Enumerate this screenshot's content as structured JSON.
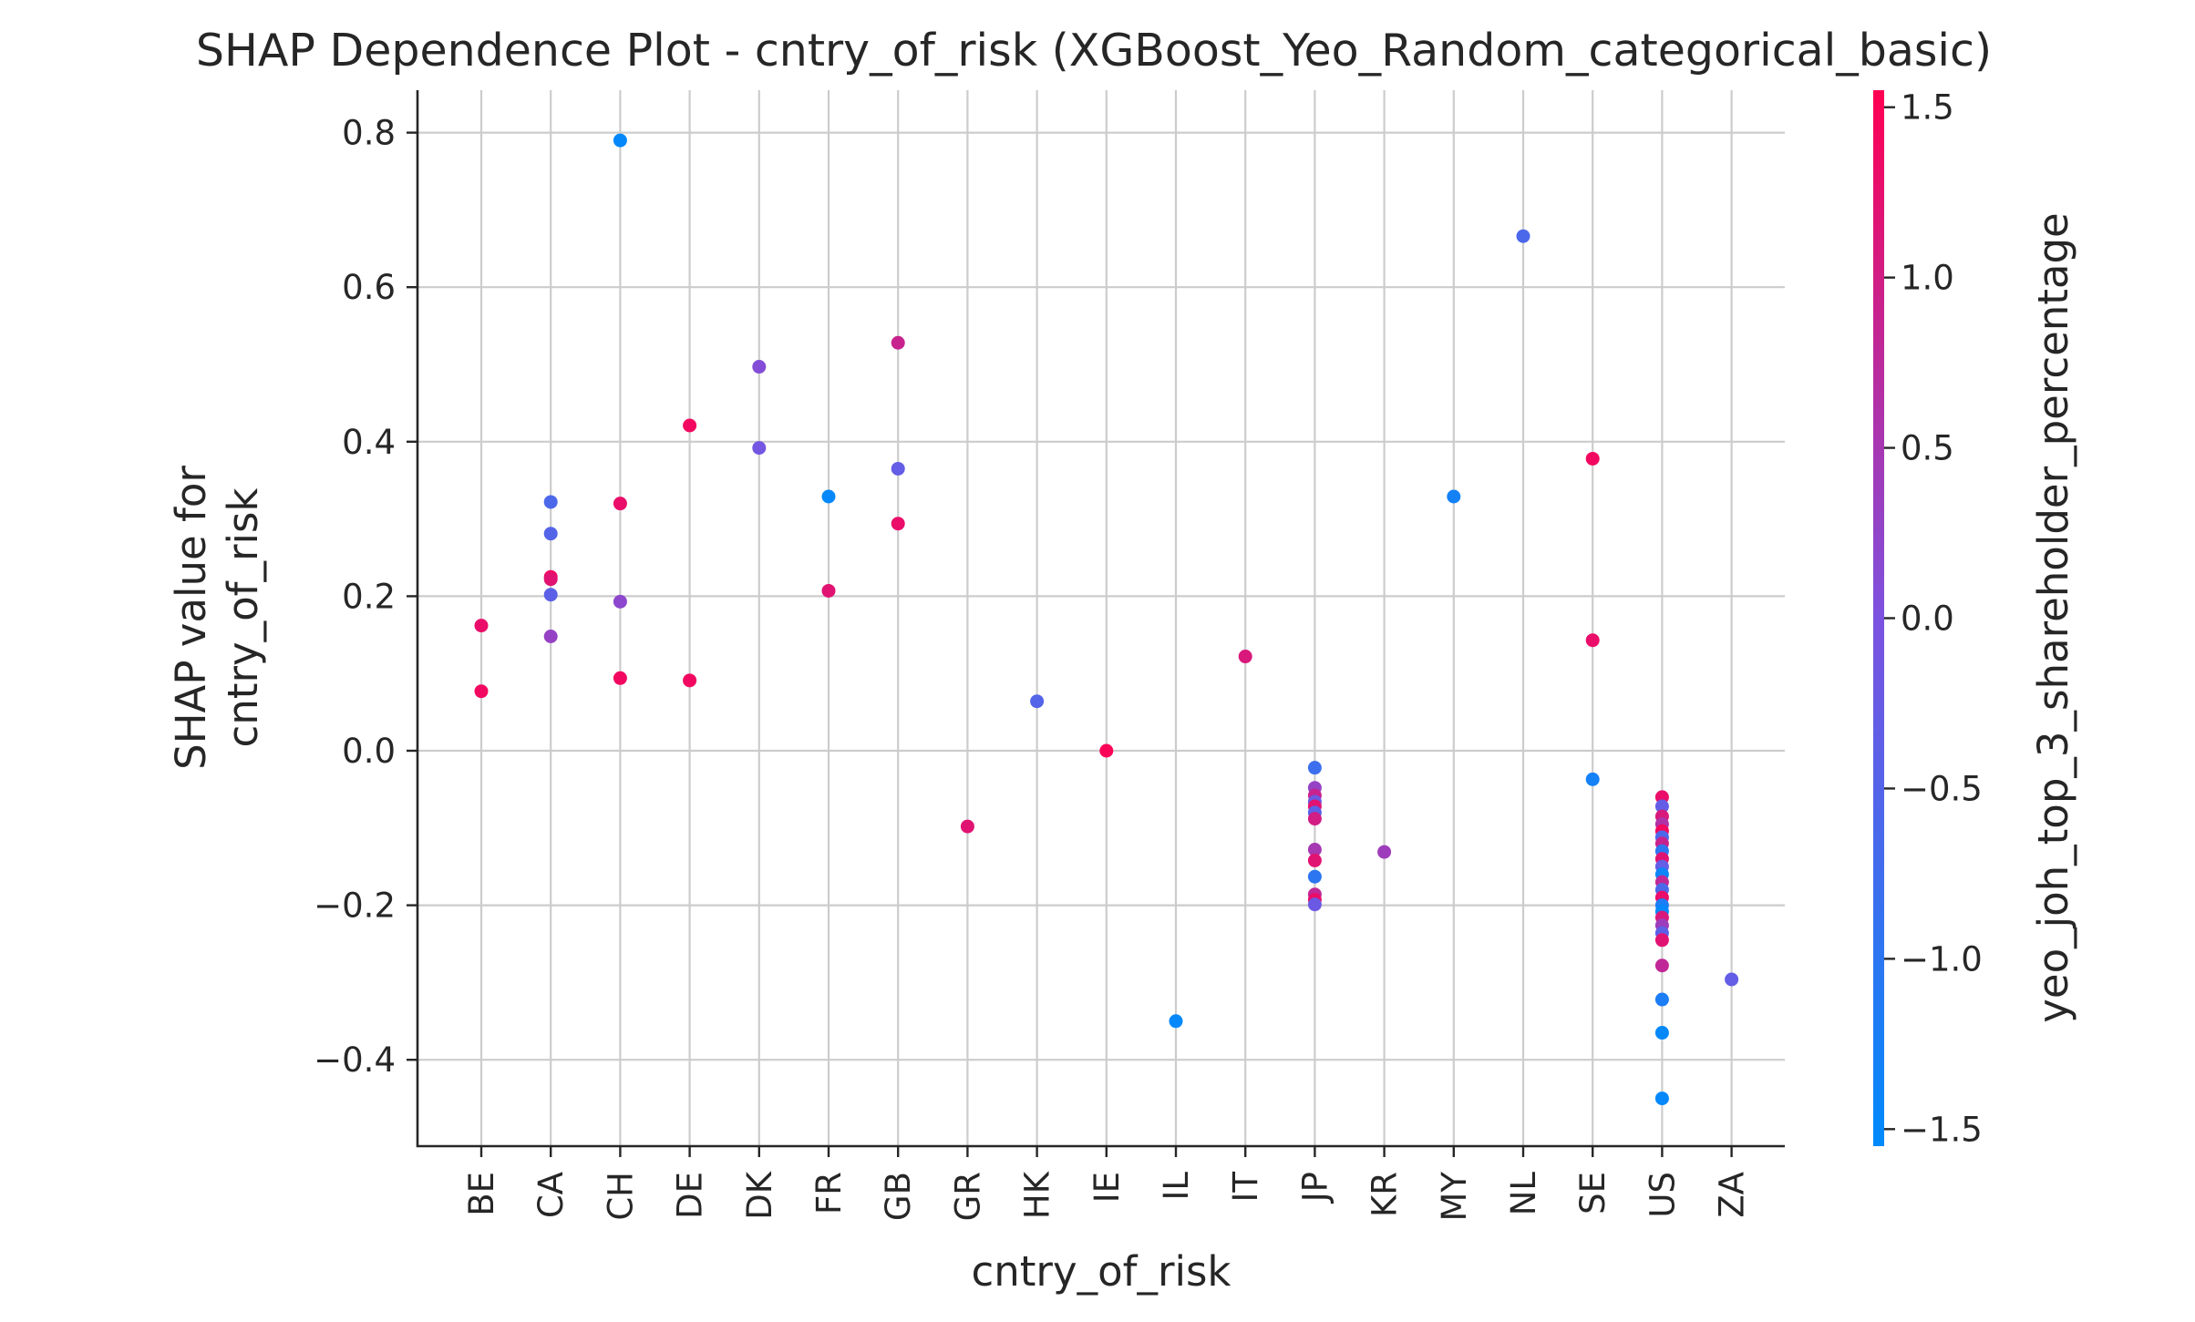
{
  "chart_data": {
    "type": "scatter",
    "title": "SHAP Dependence Plot - cntry_of_risk (XGBoost_Yeo_Random_categorical_basic)",
    "xlabel": "cntry_of_risk",
    "ylabel_lines": [
      "SHAP value for",
      "cntry_of_risk"
    ],
    "ylim": [
      -0.51,
      0.85
    ],
    "yticks": [
      -0.4,
      -0.2,
      0.0,
      0.2,
      0.4,
      0.6,
      0.8
    ],
    "ytick_labels": [
      "−0.4",
      "−0.2",
      "0.0",
      "0.2",
      "0.4",
      "0.6",
      "0.8"
    ],
    "categories": [
      "BE",
      "CA",
      "CH",
      "DE",
      "DK",
      "FR",
      "GB",
      "GR",
      "HK",
      "IE",
      "IL",
      "IT",
      "JP",
      "KR",
      "MY",
      "NL",
      "SE",
      "US",
      "ZA"
    ],
    "grid": true,
    "colorbar": {
      "label": "yeo_joh_top_3_shareholder_percentage",
      "range": [
        -1.55,
        1.55
      ],
      "ticks": [
        -1.5,
        -1.0,
        -0.5,
        0.0,
        0.5,
        1.0,
        1.5
      ],
      "tick_labels": [
        "−1.5",
        "−1.0",
        "−0.5",
        "0.0",
        "0.5",
        "1.0",
        "1.5"
      ],
      "colormap": [
        "#008afb",
        "#7c52e0",
        "#ff0052"
      ]
    },
    "points": [
      {
        "x": "BE",
        "y": 0.162,
        "c": 1.3
      },
      {
        "x": "BE",
        "y": 0.077,
        "c": 1.4
      },
      {
        "x": "CA",
        "y": 0.322,
        "c": -0.6
      },
      {
        "x": "CA",
        "y": 0.281,
        "c": -0.5
      },
      {
        "x": "CA",
        "y": 0.225,
        "c": 1.4
      },
      {
        "x": "CA",
        "y": 0.222,
        "c": 1.2
      },
      {
        "x": "CA",
        "y": 0.202,
        "c": -0.4
      },
      {
        "x": "CA",
        "y": 0.148,
        "c": 0.3
      },
      {
        "x": "CH",
        "y": 0.79,
        "c": -1.5
      },
      {
        "x": "CH",
        "y": 0.32,
        "c": 1.3
      },
      {
        "x": "CH",
        "y": 0.193,
        "c": 0.2
      },
      {
        "x": "CH",
        "y": 0.094,
        "c": 1.4
      },
      {
        "x": "DE",
        "y": 0.421,
        "c": 1.4
      },
      {
        "x": "DE",
        "y": 0.091,
        "c": 1.4
      },
      {
        "x": "DK",
        "y": 0.497,
        "c": 0.1
      },
      {
        "x": "DK",
        "y": 0.392,
        "c": -0.1
      },
      {
        "x": "FR",
        "y": 0.329,
        "c": -1.5
      },
      {
        "x": "FR",
        "y": 0.207,
        "c": 1.2
      },
      {
        "x": "GB",
        "y": 0.528,
        "c": 0.9
      },
      {
        "x": "GB",
        "y": 0.365,
        "c": -0.3
      },
      {
        "x": "GB",
        "y": 0.294,
        "c": 1.3
      },
      {
        "x": "GR",
        "y": -0.098,
        "c": 1.2
      },
      {
        "x": "HK",
        "y": 0.064,
        "c": -0.5
      },
      {
        "x": "IE",
        "y": 0.0,
        "c": 1.5
      },
      {
        "x": "IL",
        "y": -0.35,
        "c": -1.5
      },
      {
        "x": "IT",
        "y": 0.122,
        "c": 1.1
      },
      {
        "x": "JP",
        "y": -0.022,
        "c": -0.8
      },
      {
        "x": "JP",
        "y": -0.048,
        "c": 0.3
      },
      {
        "x": "JP",
        "y": -0.058,
        "c": 0.9
      },
      {
        "x": "JP",
        "y": -0.066,
        "c": -0.2
      },
      {
        "x": "JP",
        "y": -0.072,
        "c": 1.2
      },
      {
        "x": "JP",
        "y": -0.08,
        "c": -0.4
      },
      {
        "x": "JP",
        "y": -0.088,
        "c": 1.0
      },
      {
        "x": "JP",
        "y": -0.128,
        "c": 0.5
      },
      {
        "x": "JP",
        "y": -0.142,
        "c": 1.2
      },
      {
        "x": "JP",
        "y": -0.163,
        "c": -1.0
      },
      {
        "x": "JP",
        "y": -0.186,
        "c": 0.8
      },
      {
        "x": "JP",
        "y": -0.193,
        "c": 1.3
      },
      {
        "x": "JP",
        "y": -0.199,
        "c": -0.2
      },
      {
        "x": "KR",
        "y": -0.131,
        "c": 0.4
      },
      {
        "x": "MY",
        "y": 0.329,
        "c": -1.3
      },
      {
        "x": "NL",
        "y": 0.666,
        "c": -0.6
      },
      {
        "x": "SE",
        "y": 0.378,
        "c": 1.4
      },
      {
        "x": "SE",
        "y": 0.143,
        "c": 1.3
      },
      {
        "x": "SE",
        "y": -0.037,
        "c": -1.3
      },
      {
        "x": "US",
        "y": -0.06,
        "c": 1.3
      },
      {
        "x": "US",
        "y": -0.072,
        "c": -0.3
      },
      {
        "x": "US",
        "y": -0.085,
        "c": 1.1
      },
      {
        "x": "US",
        "y": -0.095,
        "c": 0.6
      },
      {
        "x": "US",
        "y": -0.104,
        "c": 1.4
      },
      {
        "x": "US",
        "y": -0.112,
        "c": -0.6
      },
      {
        "x": "US",
        "y": -0.12,
        "c": 0.9
      },
      {
        "x": "US",
        "y": -0.13,
        "c": -1.0
      },
      {
        "x": "US",
        "y": -0.14,
        "c": 1.2
      },
      {
        "x": "US",
        "y": -0.15,
        "c": -0.3
      },
      {
        "x": "US",
        "y": -0.16,
        "c": -1.4
      },
      {
        "x": "US",
        "y": -0.17,
        "c": 0.8
      },
      {
        "x": "US",
        "y": -0.18,
        "c": -0.6
      },
      {
        "x": "US",
        "y": -0.19,
        "c": 1.3
      },
      {
        "x": "US",
        "y": -0.2,
        "c": -1.2
      },
      {
        "x": "US",
        "y": -0.208,
        "c": -1.5
      },
      {
        "x": "US",
        "y": -0.216,
        "c": 1.1
      },
      {
        "x": "US",
        "y": -0.226,
        "c": 0.4
      },
      {
        "x": "US",
        "y": -0.236,
        "c": -0.4
      },
      {
        "x": "US",
        "y": -0.245,
        "c": 1.2
      },
      {
        "x": "US",
        "y": -0.278,
        "c": 0.8
      },
      {
        "x": "US",
        "y": -0.322,
        "c": -1.2
      },
      {
        "x": "US",
        "y": -0.365,
        "c": -1.5
      },
      {
        "x": "US",
        "y": -0.45,
        "c": -1.5
      },
      {
        "x": "ZA",
        "y": -0.296,
        "c": -0.3
      }
    ]
  }
}
